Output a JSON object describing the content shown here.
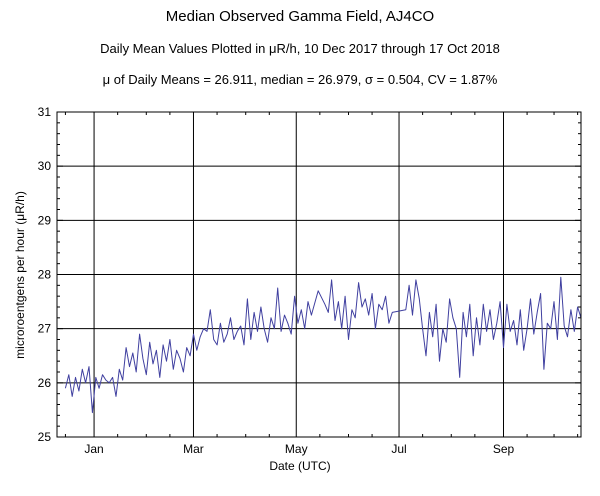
{
  "chart_data": {
    "type": "line",
    "title": "Median Observed Gamma Field, AJ4CO",
    "subtitle": "Daily Mean Values Plotted in μR/h, 10 Dec 2017 through 17 Oct 2018",
    "stats_line": "μ of Daily Means = 26.911,   median = 26.979,   σ = 0.504,   CV = 1.87%",
    "xlabel": "Date (UTC)",
    "ylabel": "microroentgens per hour (μR/h)",
    "ylim": [
      25,
      31
    ],
    "yticks": [
      "25",
      "26",
      "27",
      "28",
      "29",
      "30",
      "31"
    ],
    "xlim": [
      "2017-12-10",
      "2018-10-17"
    ],
    "xticks": [
      {
        "label": "Jan",
        "date": "2018-01-01"
      },
      {
        "label": "Mar",
        "date": "2018-03-01"
      },
      {
        "label": "May",
        "date": "2018-05-01"
      },
      {
        "label": "Jul",
        "date": "2018-07-01"
      },
      {
        "label": "Sep",
        "date": "2018-09-01"
      }
    ],
    "grid": true,
    "line_color": "#4040a0",
    "series": [
      {
        "x": [
          "2017-12-15",
          "2017-12-17",
          "2017-12-19",
          "2017-12-21",
          "2017-12-23",
          "2017-12-25",
          "2017-12-27",
          "2017-12-29",
          "2017-12-31",
          "2018-01-02",
          "2018-01-04",
          "2018-01-06",
          "2018-01-08",
          "2018-01-10",
          "2018-01-12",
          "2018-01-14",
          "2018-01-16",
          "2018-01-18",
          "2018-01-20",
          "2018-01-22",
          "2018-01-24",
          "2018-01-26",
          "2018-01-28",
          "2018-01-30",
          "2018-02-01",
          "2018-02-03",
          "2018-02-05",
          "2018-02-07",
          "2018-02-09",
          "2018-02-11",
          "2018-02-13",
          "2018-02-15",
          "2018-02-17",
          "2018-02-19",
          "2018-02-21",
          "2018-02-23",
          "2018-02-25",
          "2018-02-27",
          "2018-03-01",
          "2018-03-03",
          "2018-03-05",
          "2018-03-07",
          "2018-03-09",
          "2018-03-11",
          "2018-03-13",
          "2018-03-15",
          "2018-03-17",
          "2018-03-19",
          "2018-03-21",
          "2018-03-23",
          "2018-03-25",
          "2018-03-27",
          "2018-03-29",
          "2018-03-31",
          "2018-04-02",
          "2018-04-04",
          "2018-04-06",
          "2018-04-08",
          "2018-04-10",
          "2018-04-12",
          "2018-04-14",
          "2018-04-16",
          "2018-04-18",
          "2018-04-20",
          "2018-04-22",
          "2018-04-24",
          "2018-04-26",
          "2018-04-28",
          "2018-04-30",
          "2018-05-02",
          "2018-05-04",
          "2018-05-06",
          "2018-05-08",
          "2018-05-10",
          "2018-05-14",
          "2018-05-18",
          "2018-05-20",
          "2018-05-22",
          "2018-05-24",
          "2018-05-26",
          "2018-05-28",
          "2018-05-30",
          "2018-06-01",
          "2018-06-03",
          "2018-06-05",
          "2018-06-07",
          "2018-06-09",
          "2018-06-11",
          "2018-06-13",
          "2018-06-15",
          "2018-06-17",
          "2018-06-19",
          "2018-06-21",
          "2018-06-23",
          "2018-06-25",
          "2018-06-27",
          "2018-07-05",
          "2018-07-07",
          "2018-07-09",
          "2018-07-11",
          "2018-07-13",
          "2018-07-15",
          "2018-07-17",
          "2018-07-19",
          "2018-07-21",
          "2018-07-23",
          "2018-07-25",
          "2018-07-27",
          "2018-07-29",
          "2018-07-31",
          "2018-08-02",
          "2018-08-04",
          "2018-08-06",
          "2018-08-08",
          "2018-08-10",
          "2018-08-12",
          "2018-08-14",
          "2018-08-16",
          "2018-08-18",
          "2018-08-20",
          "2018-08-22",
          "2018-08-24",
          "2018-08-26",
          "2018-08-28",
          "2018-08-30",
          "2018-09-01",
          "2018-09-03",
          "2018-09-05",
          "2018-09-07",
          "2018-09-09",
          "2018-09-11",
          "2018-09-13",
          "2018-09-15",
          "2018-09-17",
          "2018-09-19",
          "2018-09-21",
          "2018-09-23",
          "2018-09-25",
          "2018-09-27",
          "2018-09-29",
          "2018-10-01",
          "2018-10-03",
          "2018-10-05",
          "2018-10-07",
          "2018-10-09",
          "2018-10-11",
          "2018-10-13",
          "2018-10-15",
          "2018-10-17"
        ],
        "values": [
          25.9,
          26.15,
          25.75,
          26.1,
          25.85,
          26.25,
          26.0,
          26.3,
          25.45,
          26.1,
          25.9,
          26.15,
          26.05,
          26.0,
          26.1,
          25.75,
          26.25,
          26.05,
          26.65,
          26.3,
          26.55,
          26.2,
          26.9,
          26.45,
          26.15,
          26.75,
          26.35,
          26.6,
          26.1,
          26.7,
          26.4,
          26.8,
          26.25,
          26.6,
          26.45,
          26.2,
          26.65,
          26.5,
          26.9,
          26.6,
          26.85,
          27.0,
          26.95,
          27.35,
          26.8,
          26.7,
          27.1,
          26.75,
          26.9,
          27.2,
          26.8,
          26.95,
          27.05,
          26.7,
          27.55,
          26.8,
          27.3,
          26.95,
          27.4,
          27.0,
          26.75,
          27.2,
          27.0,
          27.75,
          26.95,
          27.25,
          27.1,
          26.9,
          27.6,
          27.1,
          27.35,
          27.0,
          27.5,
          27.25,
          27.7,
          27.45,
          27.3,
          27.9,
          27.15,
          27.5,
          27.0,
          27.6,
          26.8,
          27.35,
          27.2,
          27.85,
          27.4,
          27.55,
          27.25,
          27.65,
          27.0,
          27.45,
          27.35,
          27.6,
          27.1,
          27.3,
          27.35,
          27.8,
          27.25,
          27.9,
          27.55,
          27.0,
          26.5,
          27.3,
          26.85,
          27.45,
          26.4,
          27.0,
          26.75,
          27.55,
          27.2,
          27.0,
          26.1,
          27.3,
          26.85,
          27.45,
          26.5,
          27.2,
          26.7,
          27.45,
          26.95,
          27.35,
          26.8,
          27.1,
          27.5,
          26.65,
          27.45,
          26.95,
          27.15,
          26.7,
          27.35,
          26.6,
          27.0,
          27.55,
          26.9,
          27.3,
          27.65,
          26.25,
          27.1,
          27.0,
          27.5,
          26.8,
          27.95,
          27.05,
          26.85,
          27.35,
          26.95,
          27.4,
          27.2
        ]
      }
    ]
  }
}
